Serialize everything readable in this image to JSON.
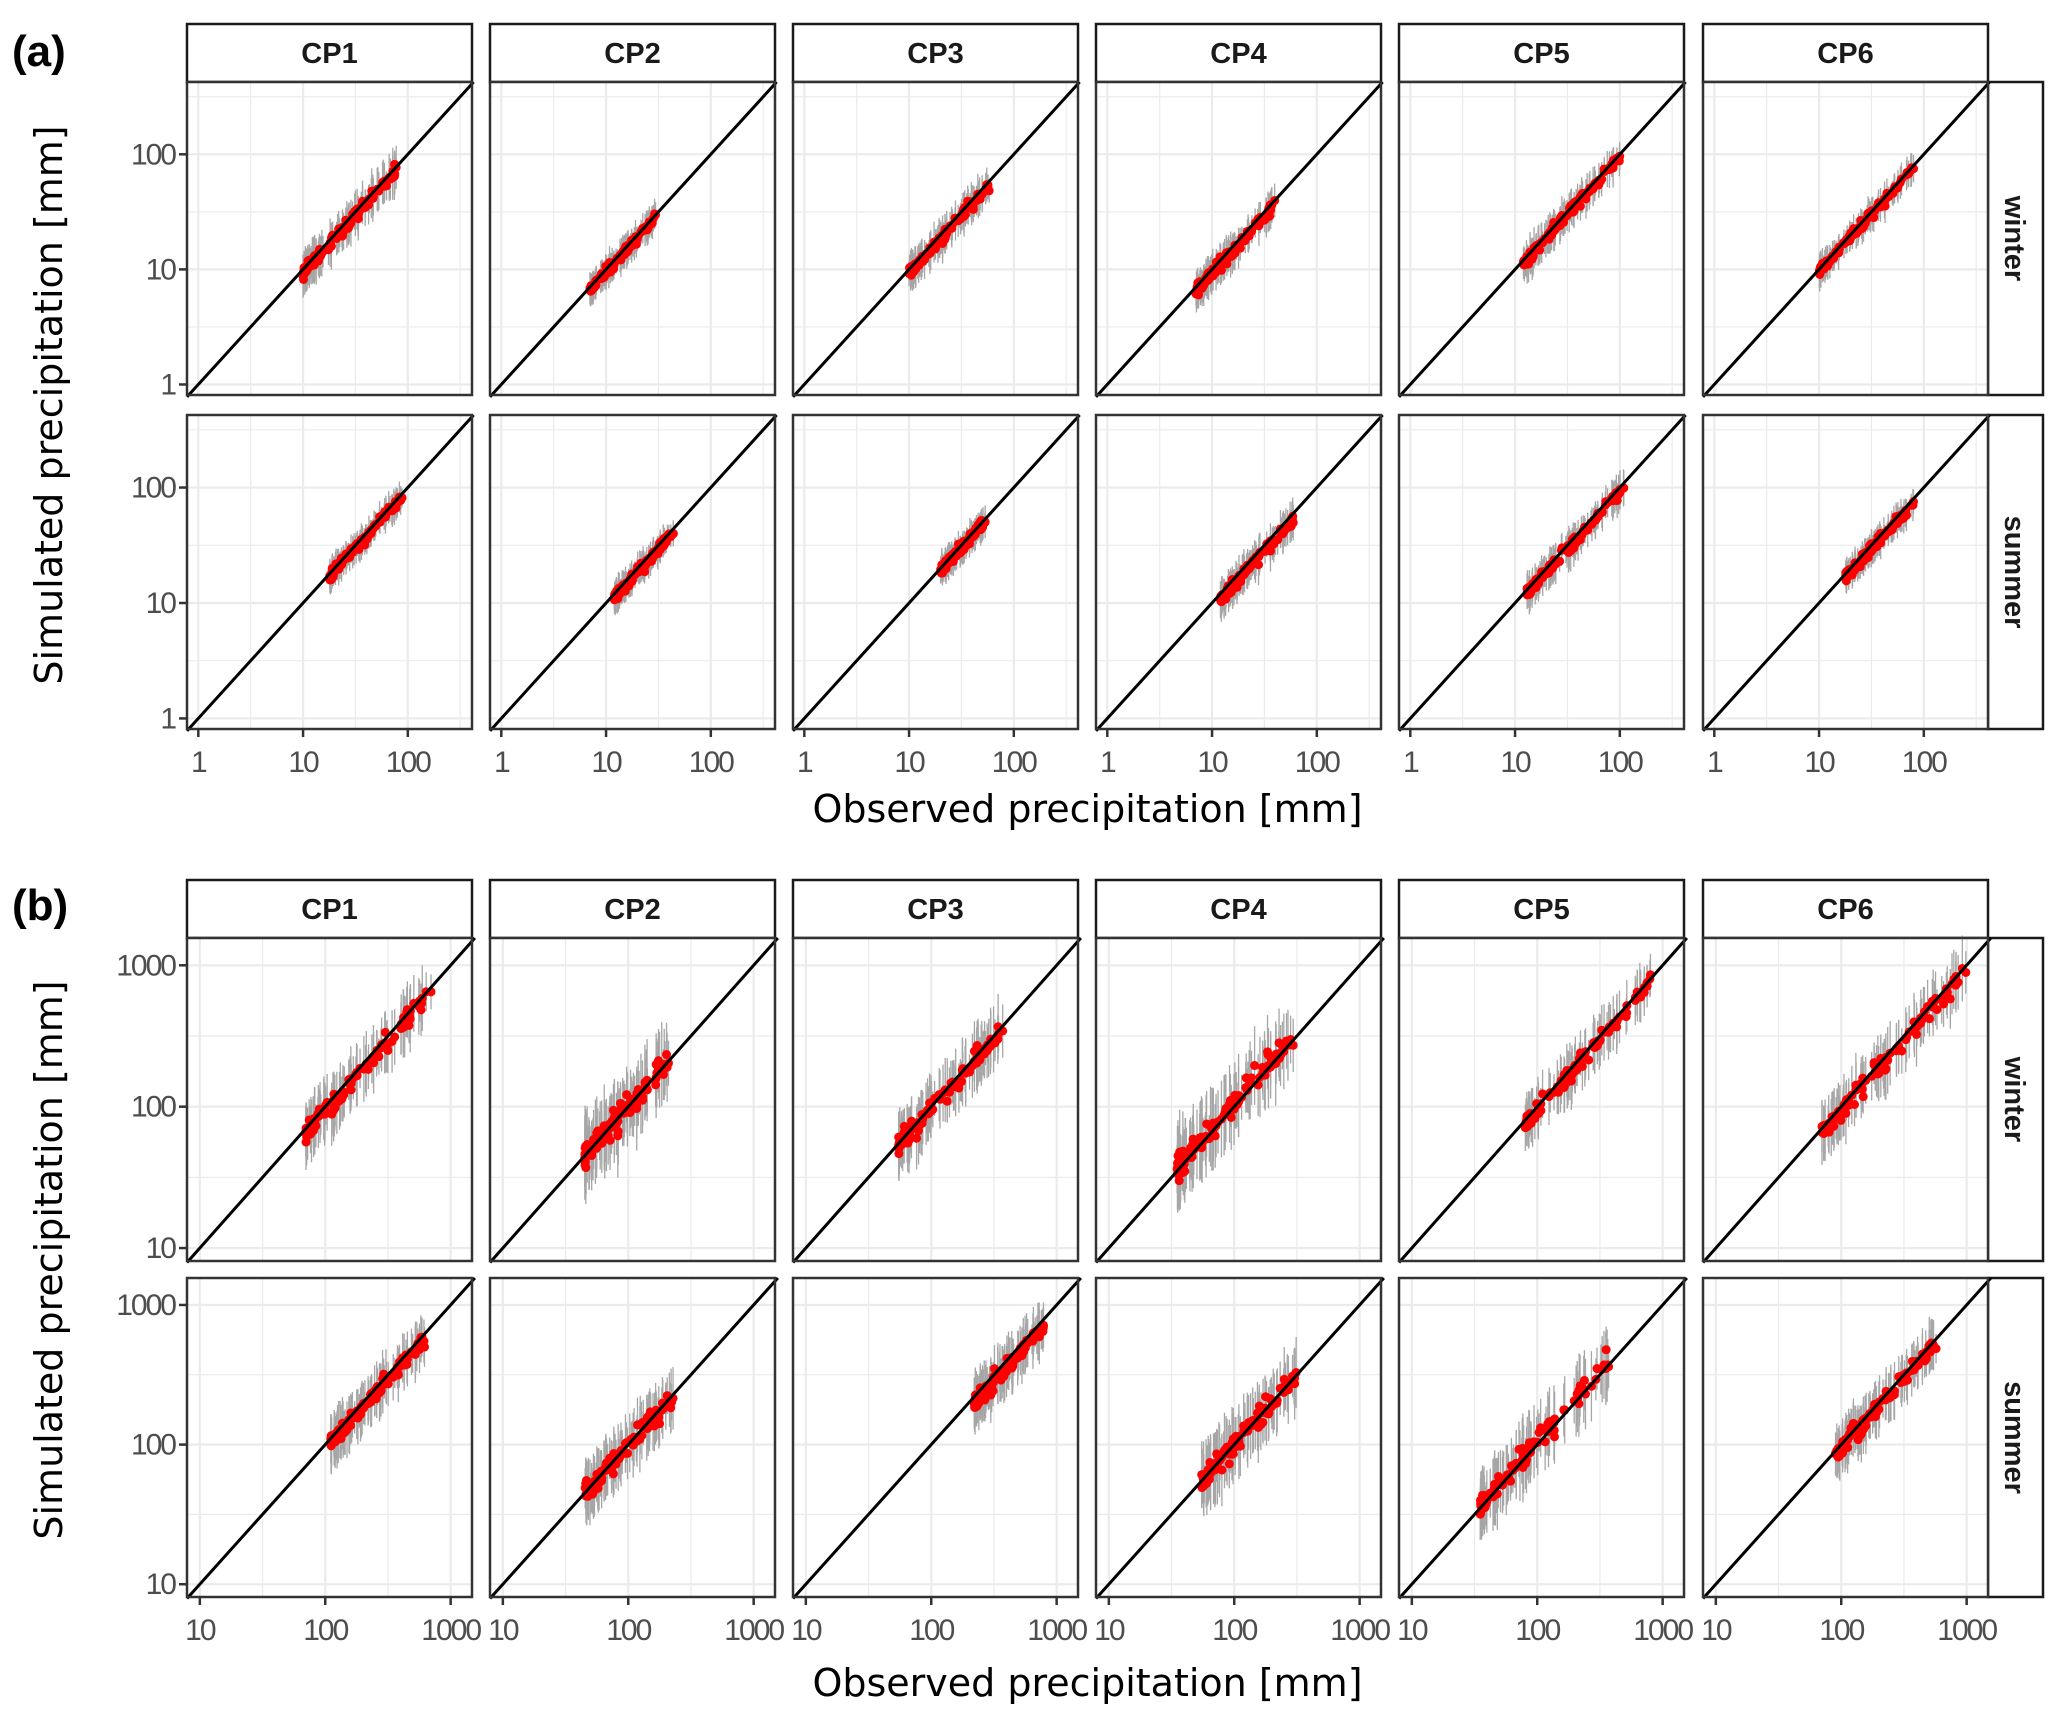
{
  "chart_data": [
    {
      "type": "scatter",
      "panel_label": "(a)",
      "xlabel": "Observed precipitation [mm]",
      "ylabel": "Simulated precipitation [mm]",
      "scale": "log10",
      "xlim": [
        0.78,
        410
      ],
      "ylim": [
        0.81,
        425
      ],
      "ticks": [
        1,
        10,
        100
      ],
      "tick_labels": [
        "1",
        "10",
        "100"
      ],
      "columns": [
        "CP1",
        "CP2",
        "CP3",
        "CP4",
        "CP5",
        "CP6"
      ],
      "rows": [
        "winter",
        "summer"
      ],
      "reference_line": "1:1",
      "colors": {
        "points": "#ff0000",
        "error_bars": "#a6a6a6",
        "line": "#000000"
      },
      "panels": {
        "winter": [
          {
            "cp": "CP1",
            "obs_range": [
              10,
              80
            ],
            "bias": -0.03,
            "spread": 0.07
          },
          {
            "cp": "CP2",
            "obs_range": [
              7,
              30
            ],
            "bias": -0.02,
            "spread": 0.05
          },
          {
            "cp": "CP3",
            "obs_range": [
              10,
              60
            ],
            "bias": -0.04,
            "spread": 0.06
          },
          {
            "cp": "CP4",
            "obs_range": [
              7,
              40
            ],
            "bias": -0.04,
            "spread": 0.06
          },
          {
            "cp": "CP5",
            "obs_range": [
              12,
              100
            ],
            "bias": -0.02,
            "spread": 0.06
          },
          {
            "cp": "CP6",
            "obs_range": [
              10,
              85
            ],
            "bias": -0.02,
            "spread": 0.05
          }
        ],
        "summer": [
          {
            "cp": "CP1",
            "obs_range": [
              18,
              90
            ],
            "bias": -0.02,
            "spread": 0.05
          },
          {
            "cp": "CP2",
            "obs_range": [
              12,
              45
            ],
            "bias": -0.03,
            "spread": 0.05
          },
          {
            "cp": "CP3",
            "obs_range": [
              20,
              55
            ],
            "bias": -0.02,
            "spread": 0.05
          },
          {
            "cp": "CP4",
            "obs_range": [
              12,
              60
            ],
            "bias": -0.05,
            "spread": 0.06
          },
          {
            "cp": "CP5",
            "obs_range": [
              13,
              110
            ],
            "bias": -0.03,
            "spread": 0.06
          },
          {
            "cp": "CP6",
            "obs_range": [
              18,
              80
            ],
            "bias": -0.03,
            "spread": 0.05
          }
        ]
      }
    },
    {
      "type": "scatter",
      "panel_label": "(b)",
      "xlabel": "Observed precipitation [mm]",
      "ylabel": "Simulated precipitation [mm]",
      "scale": "log10",
      "xlim": [
        7.9,
        1480
      ],
      "ylim": [
        8.1,
        1560
      ],
      "ticks": [
        10,
        100,
        1000
      ],
      "tick_labels": [
        "10",
        "100",
        "1000"
      ],
      "columns": [
        "CP1",
        "CP2",
        "CP3",
        "CP4",
        "CP5",
        "CP6"
      ],
      "rows": [
        "winter",
        "summer"
      ],
      "reference_line": "1:1",
      "colors": {
        "points": "#ff0000",
        "error_bars": "#a6a6a6",
        "line": "#000000"
      },
      "panels": {
        "winter": [
          {
            "cp": "CP1",
            "obs_range": [
              70,
              700
            ],
            "bias": -0.03,
            "spread": 0.08
          },
          {
            "cp": "CP2",
            "obs_range": [
              45,
              220
            ],
            "bias": 0.0,
            "spread": 0.1
          },
          {
            "cp": "CP3",
            "obs_range": [
              55,
              380
            ],
            "bias": -0.02,
            "spread": 0.08
          },
          {
            "cp": "CP4",
            "obs_range": [
              35,
              300
            ],
            "bias": 0.02,
            "spread": 0.1
          },
          {
            "cp": "CP5",
            "obs_range": [
              80,
              800
            ],
            "bias": -0.02,
            "spread": 0.07
          },
          {
            "cp": "CP6",
            "obs_range": [
              70,
              1000
            ],
            "bias": -0.03,
            "spread": 0.08
          }
        ],
        "summer": [
          {
            "cp": "CP1",
            "obs_range": [
              110,
              650
            ],
            "bias": -0.03,
            "spread": 0.07
          },
          {
            "cp": "CP2",
            "obs_range": [
              45,
              230
            ],
            "bias": 0.0,
            "spread": 0.08
          },
          {
            "cp": "CP3",
            "obs_range": [
              220,
              800
            ],
            "bias": -0.05,
            "spread": 0.07
          },
          {
            "cp": "CP4",
            "obs_range": [
              55,
              320
            ],
            "bias": 0.0,
            "spread": 0.09
          },
          {
            "cp": "CP5",
            "obs_range": [
              35,
              380
            ],
            "bias": 0.02,
            "spread": 0.09
          },
          {
            "cp": "CP6",
            "obs_range": [
              90,
              580
            ],
            "bias": -0.02,
            "spread": 0.07
          }
        ]
      }
    }
  ]
}
